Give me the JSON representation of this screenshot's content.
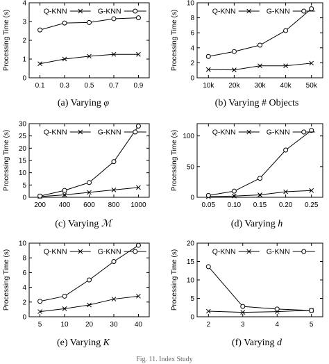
{
  "legend": {
    "series_a": "Q-KNN",
    "series_b": "G-KNN"
  },
  "chart_data": [
    {
      "type": "line",
      "caption_prefix": "(a) Varying",
      "caption_var": "φ",
      "ylabel": "Processing Time (s)",
      "x_ticks": [
        "0.1",
        "0.3",
        "0.5",
        "0.7",
        "0.9"
      ],
      "ylim": [
        0,
        4
      ],
      "y_ticks": [
        0,
        1,
        2,
        3,
        4
      ],
      "series": [
        {
          "name": "Q-KNN",
          "marker": "x",
          "values": [
            0.75,
            1.0,
            1.15,
            1.25,
            1.25
          ]
        },
        {
          "name": "G-KNN",
          "marker": "o",
          "values": [
            2.55,
            2.92,
            2.95,
            3.15,
            3.2
          ]
        }
      ]
    },
    {
      "type": "line",
      "caption_prefix": "(b) Varying # Objects",
      "caption_var": "",
      "ylabel": "Processing Time (s)",
      "x_ticks": [
        "10k",
        "20k",
        "30k",
        "40k",
        "50k"
      ],
      "ylim": [
        0,
        10
      ],
      "y_ticks": [
        0,
        2,
        4,
        6,
        8,
        10
      ],
      "series": [
        {
          "name": "Q-KNN",
          "marker": "x",
          "values": [
            1.1,
            1.05,
            1.6,
            1.6,
            1.95
          ]
        },
        {
          "name": "G-KNN",
          "marker": "o",
          "values": [
            2.85,
            3.5,
            4.35,
            6.3,
            9.2
          ]
        }
      ]
    },
    {
      "type": "line",
      "caption_prefix": "(c) Varying",
      "caption_var": "ℳ",
      "ylabel": "Processing Time (s)",
      "x_ticks": [
        "200",
        "400",
        "600",
        "800",
        "1000"
      ],
      "ylim": [
        0,
        30
      ],
      "y_ticks": [
        0,
        5,
        10,
        15,
        20,
        25,
        30
      ],
      "series": [
        {
          "name": "Q-KNN",
          "marker": "x",
          "values": [
            0.3,
            1.0,
            2.0,
            3.0,
            4.0
          ]
        },
        {
          "name": "G-KNN",
          "marker": "o",
          "values": [
            0.5,
            2.8,
            6.0,
            14.5,
            29.0
          ]
        }
      ]
    },
    {
      "type": "line",
      "caption_prefix": "(d) Varying",
      "caption_var": "h",
      "ylabel": "Processing Time (s)",
      "x_ticks": [
        "0.05",
        "0.10",
        "0.15",
        "0.20",
        "0.25"
      ],
      "ylim": [
        0,
        120
      ],
      "y_ticks": [
        0,
        50,
        100
      ],
      "series": [
        {
          "name": "Q-KNN",
          "marker": "x",
          "values": [
            1.0,
            2.0,
            4.0,
            9.0,
            11.0
          ]
        },
        {
          "name": "G-KNN",
          "marker": "o",
          "values": [
            3.0,
            10.0,
            31.0,
            77.0,
            109.0
          ]
        }
      ]
    },
    {
      "type": "line",
      "caption_prefix": "(e) Varying",
      "caption_var": "K",
      "ylabel": "Processing Time (s)",
      "x_ticks": [
        "5",
        "10",
        "20",
        "30",
        "40"
      ],
      "ylim": [
        0,
        10
      ],
      "y_ticks": [
        0,
        2,
        4,
        6,
        8,
        10
      ],
      "series": [
        {
          "name": "Q-KNN",
          "marker": "x",
          "values": [
            0.7,
            1.1,
            1.6,
            2.4,
            2.8
          ]
        },
        {
          "name": "G-KNN",
          "marker": "o",
          "values": [
            2.1,
            2.8,
            5.0,
            7.5,
            9.7
          ]
        }
      ]
    },
    {
      "type": "line",
      "caption_prefix": "(f) Varying",
      "caption_var": "d",
      "ylabel": "Processing Time (s)",
      "x_ticks": [
        "2",
        "3",
        "4",
        "5"
      ],
      "ylim": [
        0,
        20
      ],
      "y_ticks": [
        0,
        5,
        10,
        15,
        20
      ],
      "series": [
        {
          "name": "Q-KNN",
          "marker": "x",
          "values": [
            1.5,
            1.2,
            1.4,
            1.8
          ]
        },
        {
          "name": "G-KNN",
          "marker": "o",
          "values": [
            13.6,
            2.8,
            2.1,
            1.7
          ]
        }
      ]
    }
  ],
  "footer_caption": "Fig. 11.   Index Study"
}
